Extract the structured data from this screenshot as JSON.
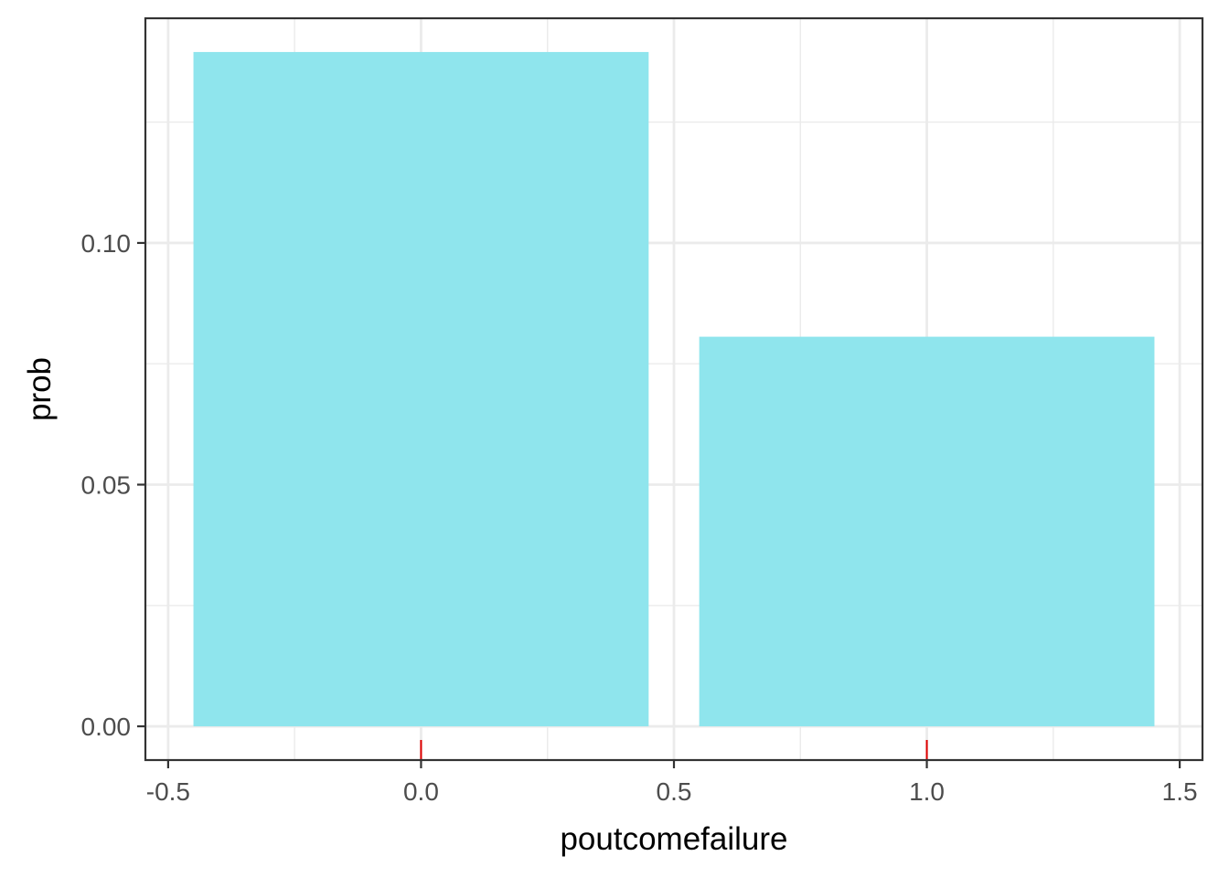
{
  "chart_data": {
    "type": "bar",
    "xlabel": "poutcomefailure",
    "ylabel": "prob",
    "x": [
      0,
      1
    ],
    "values": [
      0.1395,
      0.0806
    ],
    "bar_width": 0.9,
    "xlim": [
      -0.545,
      1.545
    ],
    "ylim": [
      -0.00698,
      0.14648
    ],
    "x_ticks": [
      -0.5,
      0.0,
      0.5,
      1.0,
      1.5
    ],
    "x_tick_labels": [
      "-0.5",
      "0.0",
      "0.5",
      "1.0",
      "1.5"
    ],
    "y_ticks": [
      0.0,
      0.05,
      0.1
    ],
    "y_tick_labels": [
      "0.00",
      "0.05",
      "0.10"
    ],
    "rug_x": [
      0,
      1
    ],
    "grid": true,
    "legend": "none",
    "colors": {
      "bar_fill": "#8fe5ed",
      "rug": "#e00000",
      "grid": "#ebebeb",
      "panel_border": "#333333"
    }
  }
}
